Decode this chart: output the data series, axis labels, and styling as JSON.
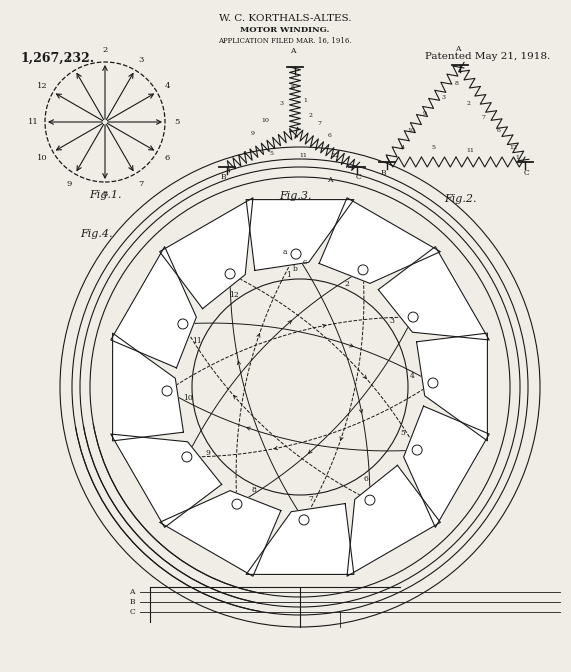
{
  "bg_color": "#f0ede6",
  "line_color": "#1a1a1a",
  "title1": "W. C. KORTHALS-ALTES.",
  "title2": "MOTOR WINDING.",
  "title3": "APPLICATION FILED MAR. 16, 1916.",
  "patent_num": "1,267,232.",
  "patent_date": "Patented May 21, 1918.",
  "fig1_label": "Fig.1.",
  "fig2_label": "Fig.2.",
  "fig3_label": "Fig.3.",
  "fig4_label": "Fig.4."
}
